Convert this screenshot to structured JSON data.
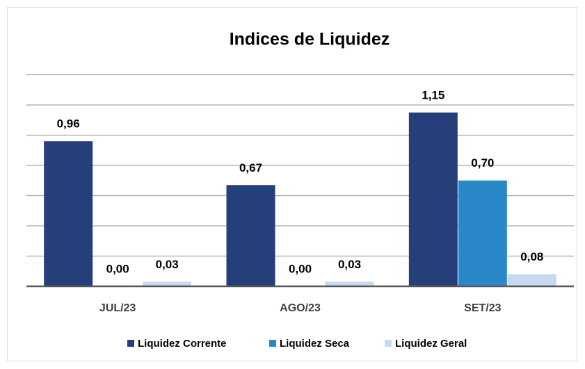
{
  "chart_data": {
    "type": "bar",
    "title": "Indices de Liquidez",
    "categories": [
      "JUL/23",
      "AGO/23",
      "SET/23"
    ],
    "series": [
      {
        "name": "Liquidez Corrente",
        "color": "#253f7a",
        "values": [
          0.96,
          0.67,
          1.15
        ],
        "value_labels": [
          "0,96",
          "0,67",
          "1,15"
        ]
      },
      {
        "name": "Liquidez Seca",
        "color": "#2a87c8",
        "values": [
          0,
          0,
          0.7
        ],
        "value_labels": [
          "0,00",
          "0,00",
          "0,70"
        ]
      },
      {
        "name": "Liquidez Geral",
        "color": "#c5d9f1",
        "values": [
          0.03,
          0.03,
          0.08
        ],
        "value_labels": [
          "0,03",
          "0,03",
          "0,08"
        ]
      }
    ],
    "ylim": [
      0,
      1.4
    ],
    "yticks": [
      0,
      0.2,
      0.4,
      0.6,
      0.8,
      1.0,
      1.2,
      1.4
    ],
    "grid": true,
    "legend": "bottom"
  }
}
